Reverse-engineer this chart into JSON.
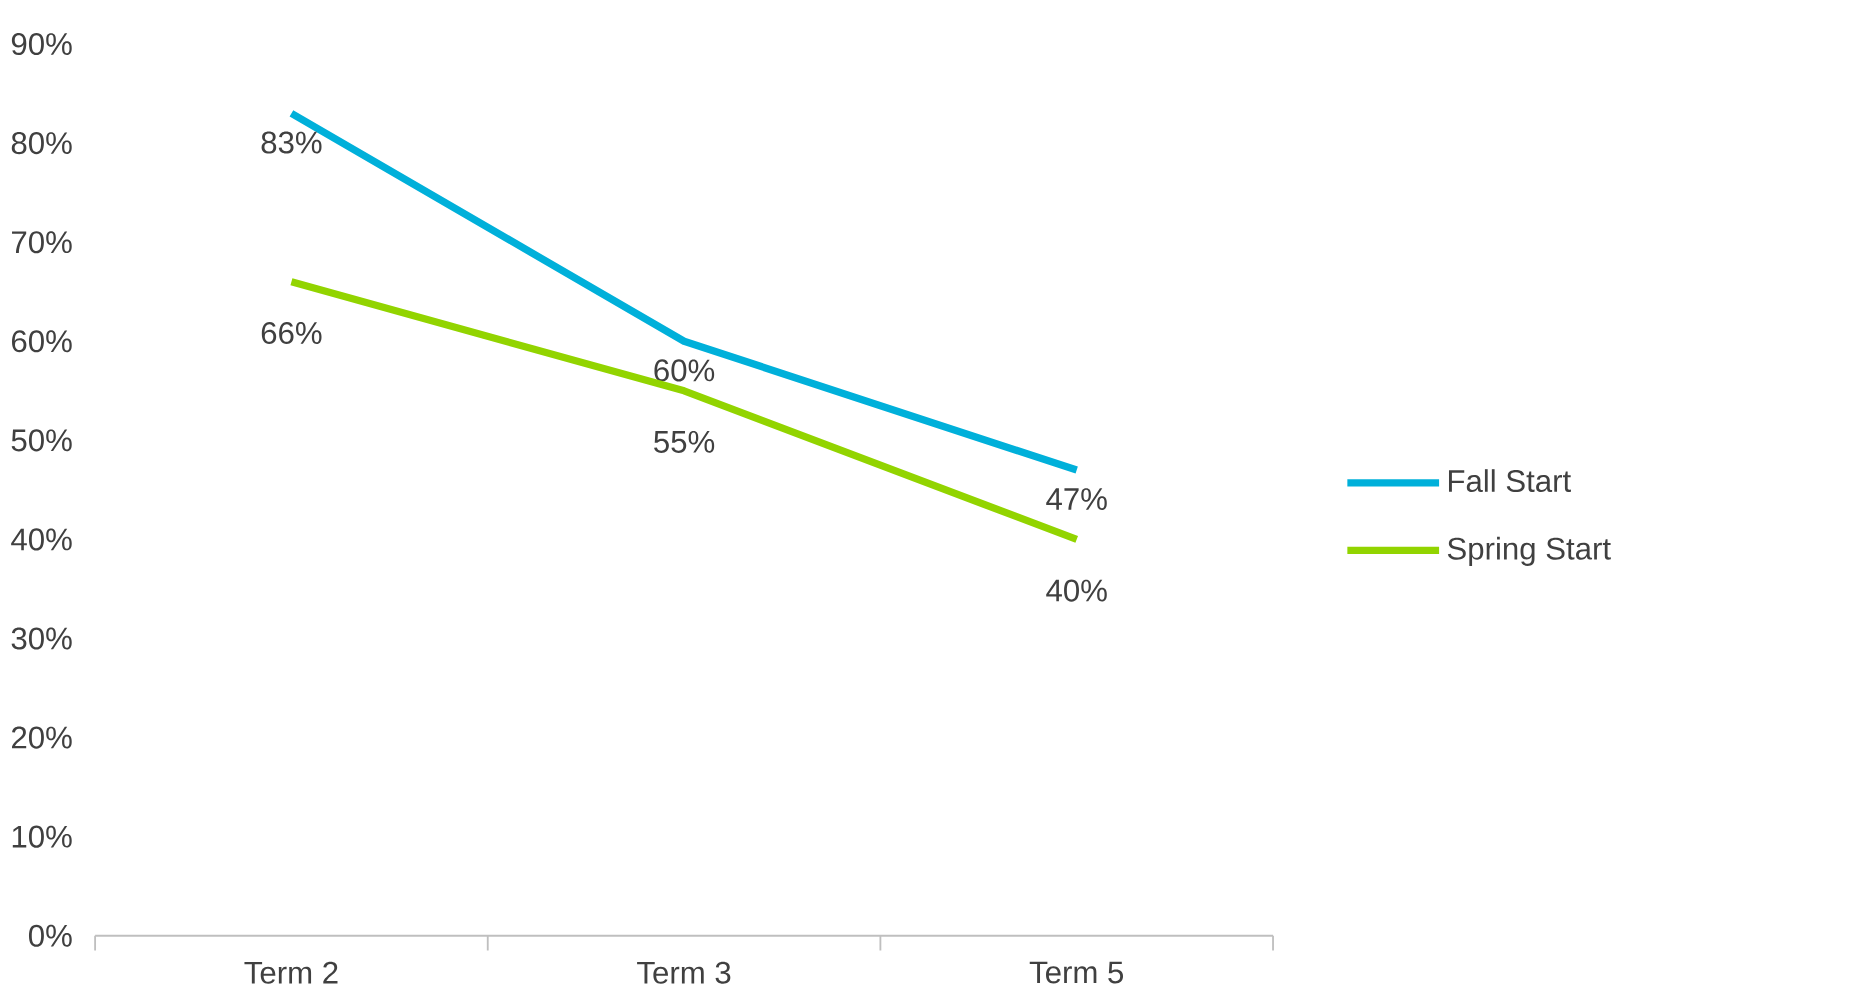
{
  "chart_data": {
    "type": "line",
    "categories": [
      "Term 2",
      "Term 3",
      "Term 5"
    ],
    "series": [
      {
        "name": "Fall Start",
        "color": "#00b0da",
        "values": [
          83,
          60,
          47
        ],
        "value_labels": [
          "83%",
          "60%",
          "47%"
        ]
      },
      {
        "name": "Spring Start",
        "color": "#92d400",
        "values": [
          66,
          55,
          40
        ],
        "value_labels": [
          "66%",
          "55%",
          "40%"
        ]
      }
    ],
    "ylim": [
      0,
      90
    ],
    "yticks": [
      {
        "value": 0,
        "label": "0%"
      },
      {
        "value": 10,
        "label": "10%"
      },
      {
        "value": 20,
        "label": "20%"
      },
      {
        "value": 30,
        "label": "30%"
      },
      {
        "value": 40,
        "label": "40%"
      },
      {
        "value": 50,
        "label": "50%"
      },
      {
        "value": 60,
        "label": "60%"
      },
      {
        "value": 70,
        "label": "70%"
      },
      {
        "value": 80,
        "label": "80%"
      },
      {
        "value": 90,
        "label": "90%"
      }
    ],
    "grid": false,
    "legend": "right",
    "marker": "none",
    "line_style": "solid"
  }
}
